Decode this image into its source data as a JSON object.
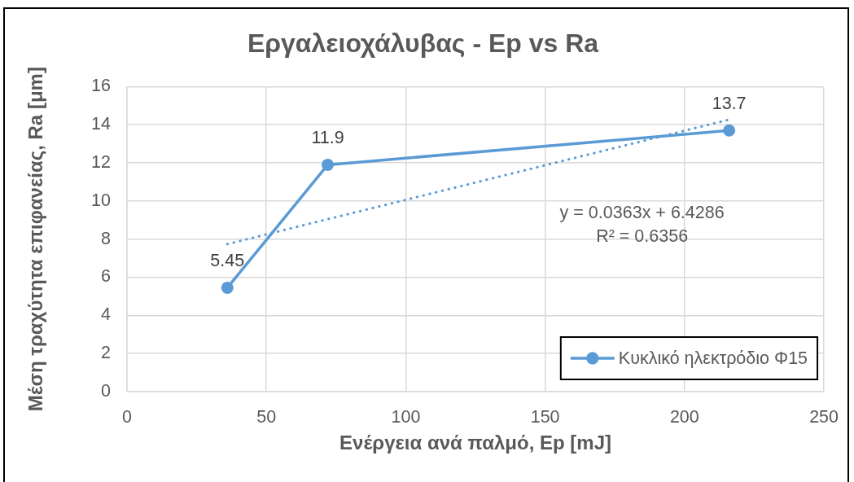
{
  "chart_data": {
    "type": "line",
    "title": "Εργαλειοχάλυβας - Ep vs Ra",
    "xlabel": "Ενέργεια ανά παλμό, Ep [mJ]",
    "ylabel": "Μέση τραχύτητα επιφανείας, Ra [μm]",
    "xlim": [
      0,
      250
    ],
    "xticks": [
      0,
      50,
      100,
      150,
      200,
      250
    ],
    "ylim": [
      0,
      16
    ],
    "yticks": [
      0,
      2,
      4,
      6,
      8,
      10,
      12,
      14,
      16
    ],
    "grid": true,
    "legend": "bottom right",
    "series": [
      {
        "name": "Κυκλικό ηλεκτρόδιο Φ15",
        "type": "line",
        "color": "#5b9bd5",
        "x": [
          36,
          72,
          216
        ],
        "values": [
          5.45,
          11.9,
          13.7
        ],
        "value_labels": [
          "5.45",
          "11.9",
          "13.7"
        ],
        "marker": "circle",
        "line_style": "solid"
      },
      {
        "type": "line",
        "color": "#5b9bd5",
        "x": [
          36,
          216
        ],
        "values": [
          7.74,
          14.27
        ],
        "marker": "none",
        "line_style": "dotted"
      }
    ],
    "annotations": [
      "y = 0.0363x + 6.4286",
      "R² = 0.6356"
    ]
  }
}
